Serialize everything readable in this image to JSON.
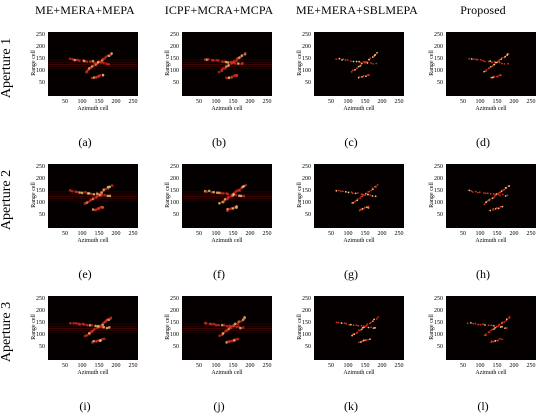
{
  "columns": [
    {
      "title": "ME+MERA+MEPA"
    },
    {
      "title": "ICPF+MCRA+MCPA"
    },
    {
      "title": "ME+MERA+SBLMEPA"
    },
    {
      "title": "Proposed"
    }
  ],
  "rows": [
    {
      "label": "Aperture 1",
      "captions": [
        "(a)",
        "(b)",
        "(c)",
        "(d)"
      ]
    },
    {
      "label": "Aperture 2",
      "captions": [
        "(e)",
        "(f)",
        "(g)",
        "(h)"
      ]
    },
    {
      "label": "Aperture 3",
      "captions": [
        "(i)",
        "(j)",
        "(k)",
        "(l)"
      ]
    }
  ],
  "axes": {
    "xlabel": "Azimuth cell",
    "ylabel": "Range cell",
    "xticks": [
      "50",
      "100",
      "150",
      "200",
      "250"
    ],
    "yticks": [
      "250",
      "200",
      "150",
      "100",
      "50"
    ],
    "xlim": [
      0,
      256
    ],
    "ylim": [
      0,
      256
    ]
  },
  "colors": {
    "background": "#050000",
    "scatter_bright": "#ffd27a",
    "scatter_mid": "#e0301e",
    "scatter_dim": "#7a0c08"
  }
}
